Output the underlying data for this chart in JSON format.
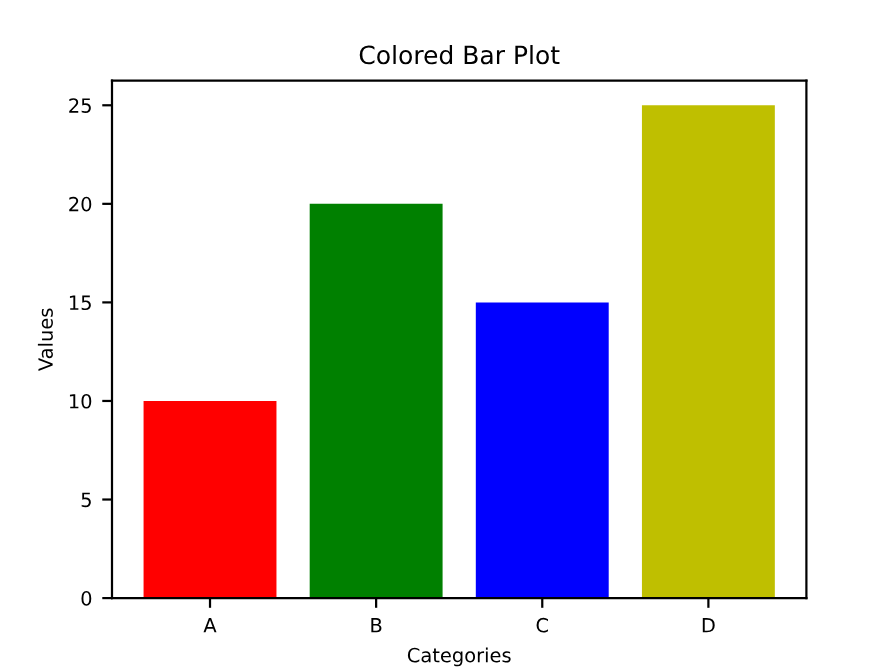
{
  "chart_data": {
    "type": "bar",
    "title": "Colored Bar Plot",
    "xlabel": "Categories",
    "ylabel": "Values",
    "categories": [
      "A",
      "B",
      "C",
      "D"
    ],
    "values": [
      10,
      20,
      15,
      25
    ],
    "colors": [
      "#ff0000",
      "#008000",
      "#0000ff",
      "#bfbf00"
    ],
    "ylim": [
      0,
      26.25
    ],
    "yticks": [
      0,
      5,
      10,
      15,
      20,
      25
    ],
    "grid": false,
    "legend": false
  }
}
